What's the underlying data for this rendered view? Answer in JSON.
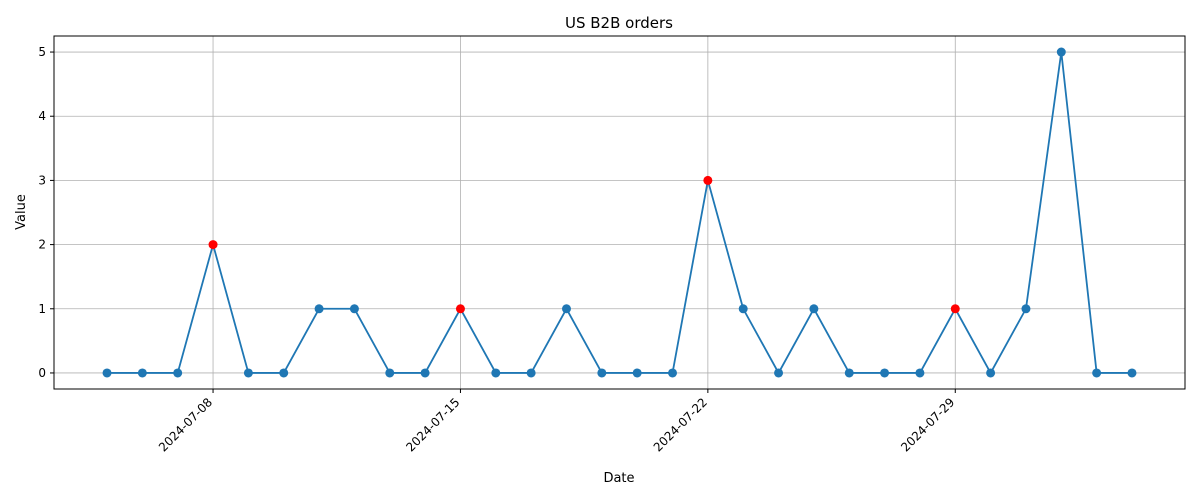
{
  "chart_data": {
    "type": "line",
    "title": "US B2B orders",
    "xlabel": "Date",
    "ylabel": "Value",
    "x": [
      "2024-07-05",
      "2024-07-06",
      "2024-07-07",
      "2024-07-08",
      "2024-07-09",
      "2024-07-10",
      "2024-07-11",
      "2024-07-12",
      "2024-07-13",
      "2024-07-14",
      "2024-07-15",
      "2024-07-16",
      "2024-07-17",
      "2024-07-18",
      "2024-07-19",
      "2024-07-20",
      "2024-07-21",
      "2024-07-22",
      "2024-07-23",
      "2024-07-24",
      "2024-07-25",
      "2024-07-26",
      "2024-07-27",
      "2024-07-28",
      "2024-07-29",
      "2024-07-30",
      "2024-07-31",
      "2024-08-01",
      "2024-08-02",
      "2024-08-03"
    ],
    "values": [
      0,
      0,
      0,
      2,
      0,
      0,
      1,
      1,
      0,
      0,
      1,
      0,
      0,
      1,
      0,
      0,
      0,
      3,
      1,
      0,
      1,
      0,
      0,
      0,
      1,
      0,
      1,
      5,
      0,
      0
    ],
    "highlighted": [
      "2024-07-08",
      "2024-07-15",
      "2024-07-22",
      "2024-07-29"
    ],
    "x_ticks": [
      "2024-07-08",
      "2024-07-15",
      "2024-07-22",
      "2024-07-29"
    ],
    "y_ticks": [
      "0",
      "1",
      "2",
      "3",
      "4",
      "5"
    ],
    "xlim": [
      "2024-07-03 12:00",
      "2024-08-04 12:00"
    ],
    "ylim": [
      -0.25,
      5.25
    ],
    "grid": true,
    "line_color": "#1f77b4",
    "highlight_color": "#ff0000"
  }
}
